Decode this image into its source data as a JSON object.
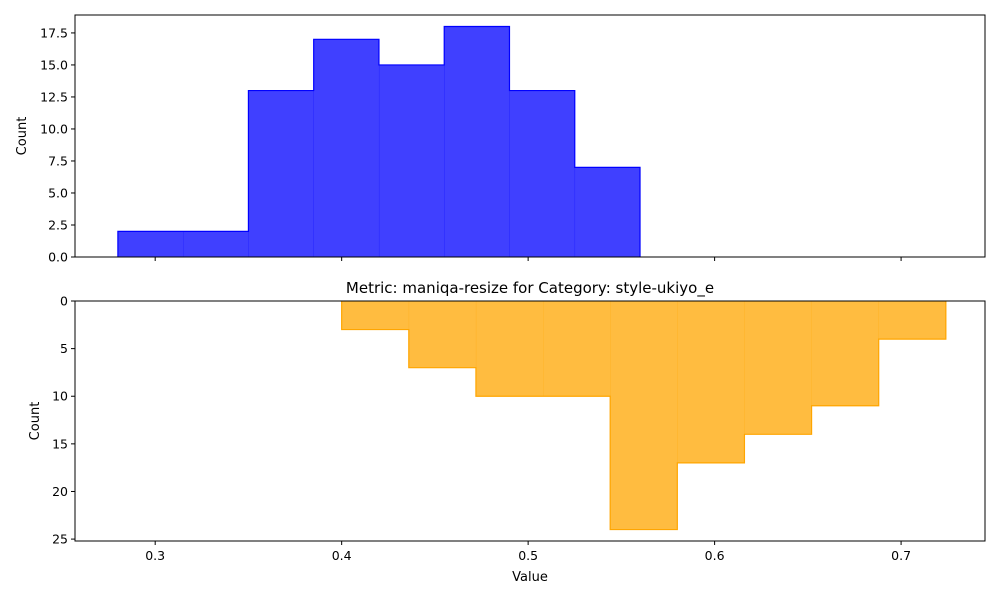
{
  "chart_data": [
    {
      "type": "bar",
      "subtype": "step-filled histogram",
      "title": "",
      "xlabel": "",
      "ylabel": "Count",
      "color": "#0000ff",
      "fill_opacity": 0.75,
      "xlim": [
        0.257,
        0.745
      ],
      "ylim": [
        0,
        18.9
      ],
      "bin_edges": [
        0.28,
        0.315,
        0.35,
        0.385,
        0.42,
        0.455,
        0.49,
        0.525,
        0.56
      ],
      "values": [
        2,
        2,
        13,
        17,
        15,
        18,
        13,
        7
      ],
      "x_ticks": [
        0.3,
        0.4,
        0.5,
        0.6,
        0.7
      ],
      "y_ticks": [
        0.0,
        2.5,
        5.0,
        7.5,
        10.0,
        12.5,
        15.0,
        17.5
      ],
      "y_tick_labels": [
        "0.0",
        "2.5",
        "5.0",
        "7.5",
        "10.0",
        "12.5",
        "15.0",
        "17.5"
      ],
      "show_x_tick_labels": false
    },
    {
      "type": "bar",
      "subtype": "step-filled histogram (inverted y)",
      "title": "Metric: maniqa-resize for Category: style-ukiyo_e",
      "xlabel": "Value",
      "ylabel": "Count",
      "color": "#ffa500",
      "fill_opacity": 0.75,
      "xlim": [
        0.257,
        0.745
      ],
      "ylim": [
        25.2,
        0
      ],
      "inverted_y": true,
      "bin_edges": [
        0.4,
        0.436,
        0.472,
        0.508,
        0.544,
        0.58,
        0.616,
        0.652,
        0.688,
        0.724
      ],
      "values": [
        3,
        7,
        10,
        10,
        24,
        17,
        14,
        11,
        4
      ],
      "x_ticks": [
        0.3,
        0.4,
        0.5,
        0.6,
        0.7
      ],
      "x_tick_labels": [
        "0.3",
        "0.4",
        "0.5",
        "0.6",
        "0.7"
      ],
      "y_ticks": [
        0,
        5,
        10,
        15,
        20,
        25
      ],
      "y_tick_labels": [
        "0",
        "5",
        "10",
        "15",
        "20",
        "25"
      ]
    }
  ]
}
